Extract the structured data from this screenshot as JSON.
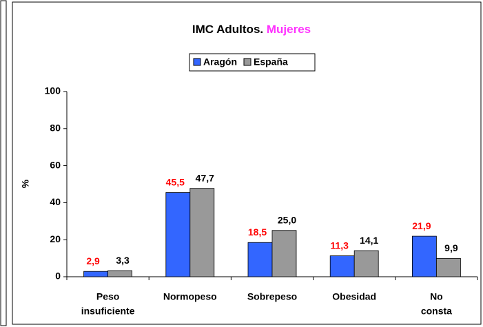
{
  "chart_data": {
    "type": "bar",
    "title": "IMC Adultos.",
    "title_highlight": "Mujeres",
    "title_highlight_color": "#ff33ff",
    "ylabel": "%",
    "categories": [
      [
        "Peso",
        "insuficiente"
      ],
      [
        "Normopeso"
      ],
      [
        "Sobrepeso"
      ],
      [
        "Obesidad"
      ],
      [
        "No",
        "consta"
      ]
    ],
    "series": [
      {
        "name": "Aragón",
        "color": "#3366ff",
        "label_color": "#ff0000",
        "values": [
          2.9,
          45.5,
          18.5,
          11.3,
          21.9
        ],
        "value_labels": [
          "2,9",
          "45,5",
          "18,5",
          "11,3",
          "21,9"
        ]
      },
      {
        "name": "España",
        "color": "#999999",
        "label_color": "#000000",
        "values": [
          3.3,
          47.7,
          25.0,
          14.1,
          9.9
        ],
        "value_labels": [
          "3,3",
          "47,7",
          "25,0",
          "14,1",
          "9,9"
        ]
      }
    ],
    "ylim": [
      0,
      100
    ],
    "yticks": [
      0,
      20,
      40,
      60,
      80,
      100
    ],
    "grid": false,
    "legend": "top"
  }
}
